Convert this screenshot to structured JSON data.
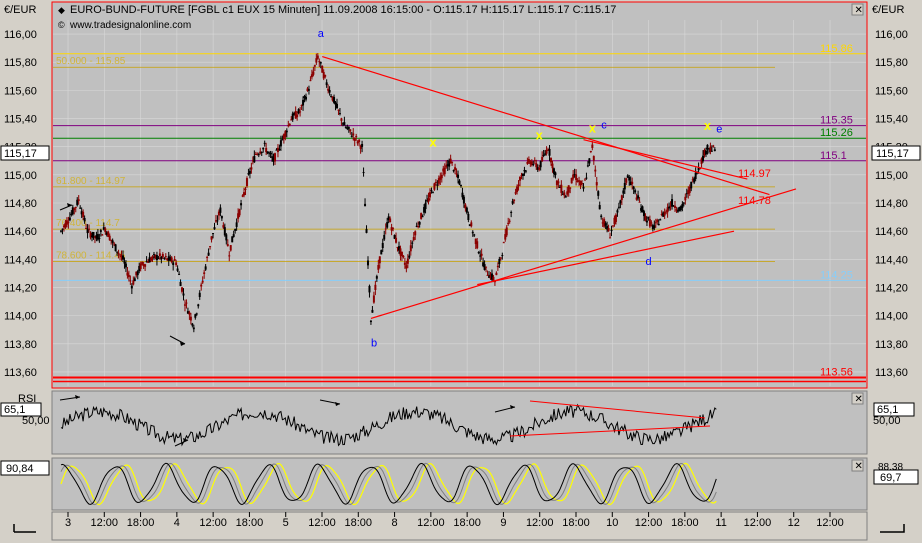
{
  "header": {
    "currency_left": "€/EUR",
    "currency_right": "€/EUR",
    "title": "EURO-BUND-FUTURE [FGBL c1 EUX  15 Minuten] 11.09.2008 16:15:00 - O:115.17 H:115.17 L:115.17 C:115.17",
    "website": "www.tradesignalonline.com"
  },
  "colors": {
    "background": "#c0c0c0",
    "price_up": "#000000",
    "price_down": "#8b0000",
    "trendline": "#ff0000",
    "fib_line": "#ffd700",
    "purple_line": "#800080",
    "green_line": "#008000",
    "blue_line": "#87cefa",
    "wave_label": "#0000ff",
    "stoch_yellow": "#ffff00"
  },
  "price_panel": {
    "current_left": "115,17",
    "current_right": "115,17"
  },
  "rsi_panel": {
    "label": "RSI",
    "value_left": "65,1",
    "value_right": "65,1",
    "tick": "50,00",
    "tick_right": "50,00"
  },
  "stoch_panel": {
    "value_left": "90,84",
    "value_right_top": "88,38",
    "value_right": "69,7"
  },
  "chart_data": {
    "type": "line",
    "instrument": "EURO-BUND-FUTURE FGBL c1 EUX",
    "interval": "15 Minuten",
    "ylim": [
      113.5,
      116.1
    ],
    "y_ticks": [
      "116,00",
      "115,80",
      "115,60",
      "115,40",
      "115,20",
      "115,00",
      "114,80",
      "114,60",
      "114,40",
      "114,20",
      "114,00",
      "113,80",
      "113,60"
    ],
    "x_ticks": [
      "3",
      "12:00",
      "18:00",
      "4",
      "12:00",
      "18:00",
      "5",
      "12:00",
      "18:00",
      "8",
      "12:00",
      "18:00",
      "9",
      "12:00",
      "18:00",
      "10",
      "12:00",
      "18:00",
      "11",
      "12:00",
      "12",
      "12:00"
    ],
    "price_series": [
      [
        0,
        114.6
      ],
      [
        1,
        114.7
      ],
      [
        2,
        114.82
      ],
      [
        3,
        114.6
      ],
      [
        4,
        114.55
      ],
      [
        5,
        114.62
      ],
      [
        6,
        114.5
      ],
      [
        7,
        114.4
      ],
      [
        8,
        114.22
      ],
      [
        9,
        114.35
      ],
      [
        10,
        114.4
      ],
      [
        11,
        114.42
      ],
      [
        12,
        114.4
      ],
      [
        13,
        114.38
      ],
      [
        14,
        114.1
      ],
      [
        15,
        113.93
      ],
      [
        16,
        114.25
      ],
      [
        17,
        114.55
      ],
      [
        18,
        114.75
      ],
      [
        19,
        114.45
      ],
      [
        20,
        114.7
      ],
      [
        21,
        114.95
      ],
      [
        22,
        115.15
      ],
      [
        23,
        115.2
      ],
      [
        24,
        115.1
      ],
      [
        25,
        115.25
      ],
      [
        26,
        115.4
      ],
      [
        27,
        115.45
      ],
      [
        28,
        115.62
      ],
      [
        29,
        115.84
      ],
      [
        30,
        115.65
      ],
      [
        31,
        115.5
      ],
      [
        32,
        115.35
      ],
      [
        33,
        115.28
      ],
      [
        34,
        115.2
      ],
      [
        35,
        113.98
      ],
      [
        36,
        114.4
      ],
      [
        37,
        114.7
      ],
      [
        38,
        114.5
      ],
      [
        39,
        114.35
      ],
      [
        40,
        114.6
      ],
      [
        41,
        114.75
      ],
      [
        42,
        114.9
      ],
      [
        43,
        115.0
      ],
      [
        44,
        115.1
      ],
      [
        45,
        114.95
      ],
      [
        46,
        114.7
      ],
      [
        47,
        114.5
      ],
      [
        48,
        114.32
      ],
      [
        49,
        114.25
      ],
      [
        50,
        114.5
      ],
      [
        51,
        114.8
      ],
      [
        52,
        115.0
      ],
      [
        53,
        115.1
      ],
      [
        54,
        115.05
      ],
      [
        55,
        115.2
      ],
      [
        56,
        114.95
      ],
      [
        57,
        114.85
      ],
      [
        58,
        115.0
      ],
      [
        59,
        114.9
      ],
      [
        60,
        115.2
      ],
      [
        61,
        114.7
      ],
      [
        62,
        114.58
      ],
      [
        63,
        114.75
      ],
      [
        64,
        115.0
      ],
      [
        65,
        114.85
      ],
      [
        66,
        114.7
      ],
      [
        67,
        114.62
      ],
      [
        68,
        114.72
      ],
      [
        69,
        114.8
      ],
      [
        70,
        114.75
      ],
      [
        71,
        114.9
      ],
      [
        72,
        115.05
      ],
      [
        73,
        115.2
      ],
      [
        74,
        115.17
      ]
    ],
    "levels": [
      {
        "name": "115.86",
        "value": 115.86,
        "color": "#ffd700"
      },
      {
        "name": "115.35",
        "value": 115.35,
        "color": "#800080"
      },
      {
        "name": "115.26",
        "value": 115.26,
        "color": "#008000"
      },
      {
        "name": "115.1",
        "value": 115.1,
        "color": "#800080"
      },
      {
        "name": "114.97",
        "value": 114.97,
        "color": "#ff0000"
      },
      {
        "name": "114.78",
        "value": 114.78,
        "color": "#ff0000"
      },
      {
        "name": "114.25",
        "value": 114.25,
        "color": "#87cefa"
      },
      {
        "name": "113.56",
        "value": 113.56,
        "color": "#ff0000"
      }
    ],
    "faded_fib_labels": [
      "50.000 - 115.85",
      "61.800 - 114.97",
      "76.400 - 114.7",
      "78.600 - 114.45"
    ],
    "faded_fib_values": [
      115.8,
      114.95,
      114.65,
      114.42
    ],
    "wave_labels": [
      {
        "label": "a",
        "x": 29,
        "y": 115.98
      },
      {
        "label": "b",
        "x": 35,
        "y": 113.78
      },
      {
        "label": "c",
        "x": 61,
        "y": 115.33
      },
      {
        "label": "d",
        "x": 66,
        "y": 114.36
      },
      {
        "label": "e",
        "x": 74,
        "y": 115.3
      }
    ],
    "x_markers": [
      [
        42,
        115.2
      ],
      [
        54,
        115.25
      ],
      [
        60,
        115.3
      ],
      [
        73,
        115.32
      ]
    ],
    "trendlines": [
      {
        "from": [
          29.5,
          115.84
        ],
        "to": [
          80,
          114.86
        ]
      },
      {
        "from": [
          35,
          113.98
        ],
        "to": [
          83,
          114.9
        ]
      },
      {
        "from": [
          47,
          114.22
        ],
        "to": [
          76,
          114.6
        ]
      },
      {
        "from": [
          59,
          115.25
        ],
        "to": [
          77.5,
          114.97
        ]
      }
    ]
  }
}
